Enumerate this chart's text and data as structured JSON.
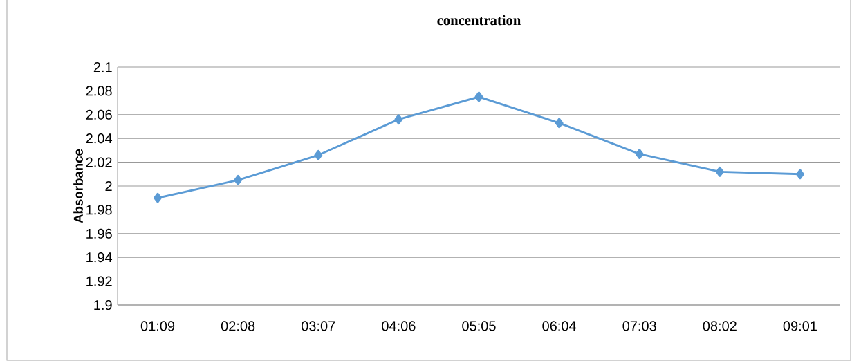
{
  "chart_data": {
    "type": "line",
    "title": "concentration",
    "ylabel": "Absorbance",
    "categories": [
      "01:09",
      "02:08",
      "03:07",
      "04:06",
      "05:05",
      "06:04",
      "07:03",
      "08:02",
      "09:01"
    ],
    "series": [
      {
        "color": "#5b9bd5",
        "values": [
          1.99,
          2.005,
          2.026,
          2.056,
          2.075,
          2.053,
          2.027,
          2.012,
          2.01
        ]
      }
    ],
    "ylim": [
      1.9,
      2.1
    ],
    "yticks": [
      1.9,
      1.92,
      1.94,
      1.96,
      1.98,
      2,
      2.02,
      2.04,
      2.06,
      2.08,
      2.1
    ],
    "grid": "y",
    "marker": "diamond",
    "line_style": "solid"
  }
}
